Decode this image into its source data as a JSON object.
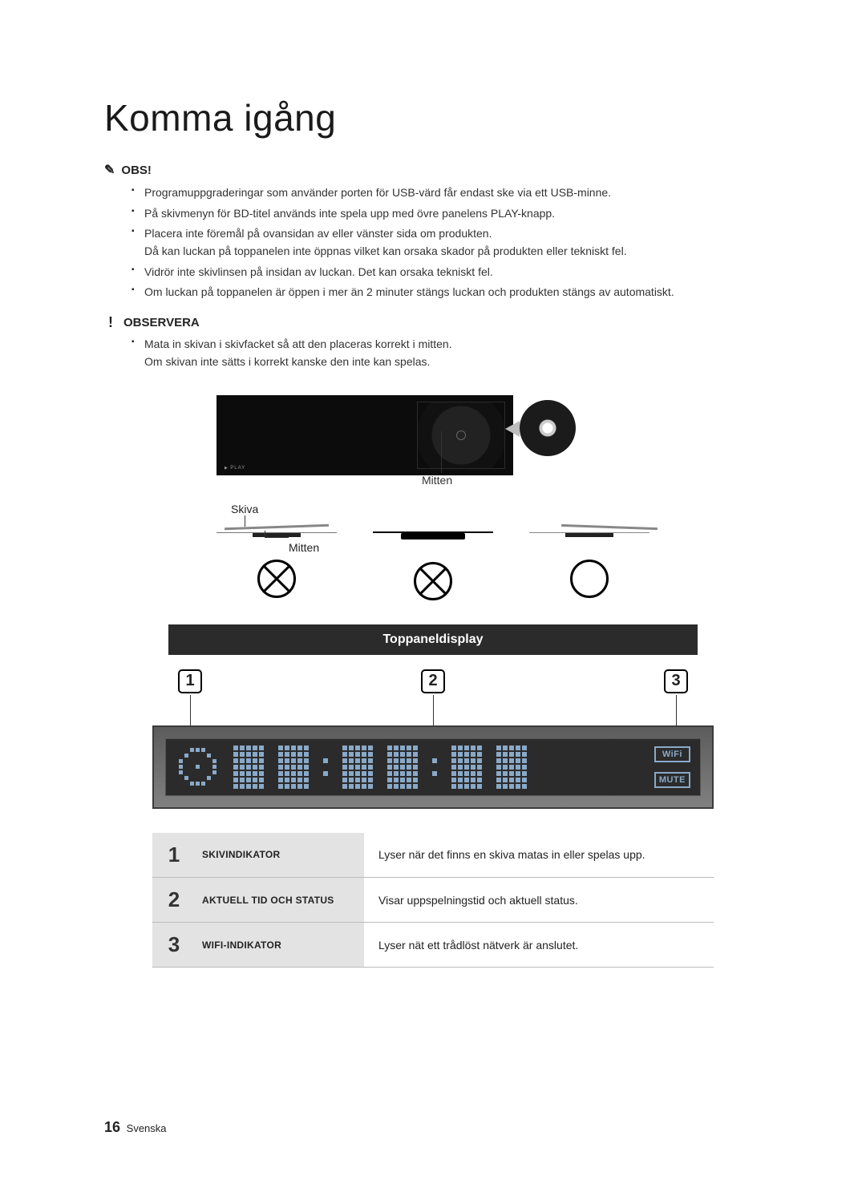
{
  "title": "Komma igång",
  "notes": {
    "obs_label": "OBS!",
    "items": [
      "Programuppgraderingar som använder porten för USB-värd får endast ske via ett USB-minne.",
      "På skivmenyn för BD-titel används inte spela upp med övre panelens PLAY-knapp.",
      "Placera inte föremål på ovansidan av eller vänster sida om produkten.\nDå kan luckan på toppanelen inte öppnas vilket kan orsaka skador på produkten eller tekniskt fel.",
      "Vidrör inte skivlinsen på insidan av luckan. Det kan orsaka tekniskt fel.",
      "Om luckan på toppanelen är öppen i mer än 2 minuter stängs luckan och produkten stängs av automatiskt."
    ]
  },
  "warn": {
    "label": "OBSERVERA",
    "items": [
      "Mata in skivan i skivfacket så att den placeras korrekt i mitten.\nOm skivan inte sätts i korrekt kanske den inte kan spelas."
    ]
  },
  "illus": {
    "play": "PLAY",
    "mitten": "Mitten",
    "skiva": "Skiva"
  },
  "section_header": "Toppaneldisplay",
  "callout_numbers": [
    "1",
    "2",
    "3"
  ],
  "panel": {
    "wifi": "WiFi",
    "mute": "MUTE"
  },
  "table": {
    "rows": [
      {
        "n": "1",
        "label": "SKIVINDIKATOR",
        "desc": "Lyser när det finns en skiva matas in eller spelas upp."
      },
      {
        "n": "2",
        "label": "AKTUELL TID OCH STATUS",
        "desc": "Visar uppspelningstid och aktuell status."
      },
      {
        "n": "3",
        "label": "WIFI-INDIKATOR",
        "desc": "Lyser nät ett trådlöst nätverk är anslutet."
      }
    ]
  },
  "footer": {
    "page": "16",
    "lang": "Svenska"
  }
}
